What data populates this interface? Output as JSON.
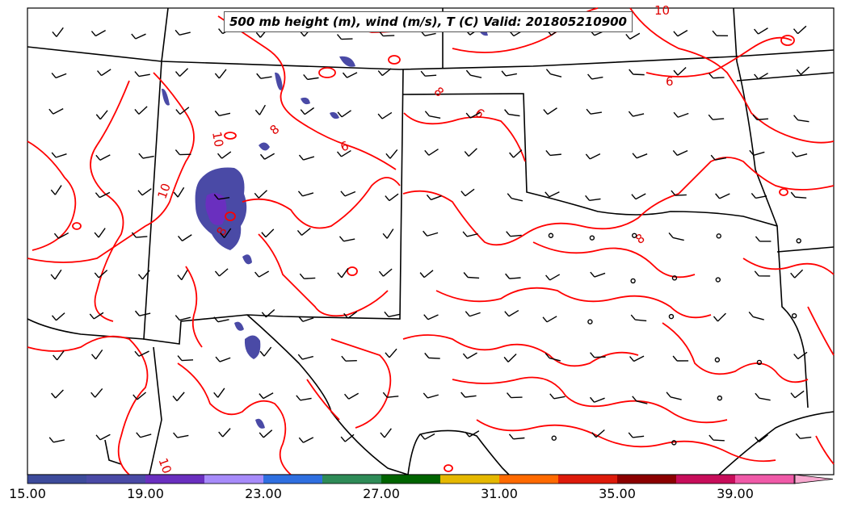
{
  "title": "500 mb height (m), wind (m/s), T (C) Valid: 201805210900",
  "contour_labels": [
    "10",
    "10",
    "10",
    "8",
    "8",
    "6",
    "6",
    "8",
    "6",
    "8",
    "10"
  ],
  "colorbar": {
    "ticks": [
      "15.00",
      "19.00",
      "23.00",
      "27.00",
      "31.00",
      "35.00",
      "39.00"
    ],
    "colors": [
      "#3d4b9b",
      "#4a4aa6",
      "#6a2fbf",
      "#a78bfa",
      "#2f6fe0",
      "#2e8b57",
      "#006400",
      "#e5b800",
      "#ff6a00",
      "#dd1a0a",
      "#8b0000",
      "#c70d5a",
      "#f05aa8",
      "#f7a8cf"
    ]
  },
  "colors": {
    "contour": "#ff0000",
    "borders": "#000000",
    "wind_barbs": "#000000"
  }
}
